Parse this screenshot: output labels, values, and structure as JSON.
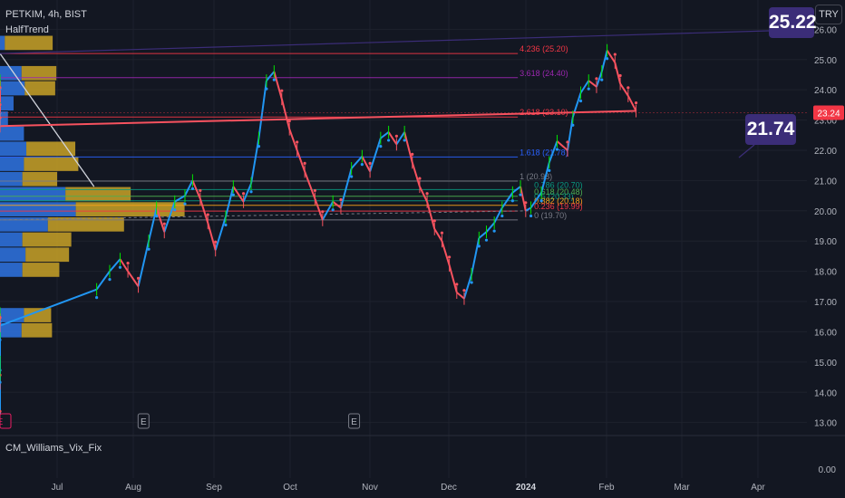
{
  "header": {
    "ticker": "PETKIM, 4h, BIST",
    "indicator": "HalfTrend",
    "currency_button": "TRY"
  },
  "sub_indicator": {
    "label": "CM_Williams_Vix_Fix",
    "axis_label": "0.00"
  },
  "callouts": {
    "top": "25.22",
    "middle": "21.74"
  },
  "current_price": {
    "label": "23.24",
    "color": "#f23645"
  },
  "colors": {
    "up": "#2196f3",
    "down": "#f7525f",
    "green": "#00e600",
    "volume_blue": "#2d6fd8",
    "volume_gold": "#c9a227"
  },
  "earnings_markers": [
    {
      "label": "E",
      "date": "Sep"
    },
    {
      "label": "E",
      "date": "Nov"
    },
    {
      "label": "E",
      "date": "Mar"
    }
  ],
  "chart_data": {
    "type": "line",
    "title": "PETKIM, 4h, BIST",
    "x_labels": [
      "Jul",
      "Aug",
      "Sep",
      "Oct",
      "Nov",
      "Dec",
      "2024",
      "Feb",
      "Mar",
      "Apr"
    ],
    "y_ticks": [
      "13.00",
      "14.00",
      "15.00",
      "16.00",
      "17.00",
      "18.00",
      "19.00",
      "20.00",
      "21.00",
      "22.00",
      "23.00",
      "24.00",
      "25.00",
      "26.00"
    ],
    "ylim": [
      12.9,
      26.1
    ],
    "series": [
      {
        "points": [
          [
            "Jun 20",
            15.0
          ],
          [
            "Jun 25",
            14.3
          ],
          [
            "Jul 1",
            13.1
          ],
          [
            "Jul 4",
            14.6
          ],
          [
            "Jul 8",
            16.0
          ],
          [
            "Jul 12",
            16.6
          ],
          [
            "Jul 18",
            16.2
          ],
          [
            "Jul 24",
            16.6
          ],
          [
            "Jul 28",
            16.2
          ],
          [
            "Aug 2",
            17.4
          ],
          [
            "Aug 7",
            18.0
          ],
          [
            "Aug 11",
            18.4
          ],
          [
            "Aug 14",
            18.0
          ],
          [
            "Aug 18",
            17.5
          ],
          [
            "Aug 22",
            19.0
          ],
          [
            "Aug 25",
            20.1
          ],
          [
            "Aug 28",
            19.3
          ],
          [
            "Sep 1",
            20.3
          ],
          [
            "Sep 5",
            20.5
          ],
          [
            "Sep 8",
            21.0
          ],
          [
            "Sep 11",
            20.4
          ],
          [
            "Sep 14",
            19.6
          ],
          [
            "Sep 17",
            18.7
          ],
          [
            "Sep 21",
            19.8
          ],
          [
            "Sep 24",
            20.8
          ],
          [
            "Sep 28",
            20.3
          ],
          [
            "Oct 1",
            20.9
          ],
          [
            "Oct 4",
            22.4
          ],
          [
            "Oct 7",
            24.3
          ],
          [
            "Oct 10",
            24.6
          ],
          [
            "Oct 13",
            23.7
          ],
          [
            "Oct 16",
            22.7
          ],
          [
            "Oct 19",
            22.0
          ],
          [
            "Oct 22",
            21.3
          ],
          [
            "Oct 26",
            20.4
          ],
          [
            "Oct 29",
            19.7
          ],
          [
            "Nov 2",
            20.3
          ],
          [
            "Nov 5",
            20.1
          ],
          [
            "Nov 9",
            21.4
          ],
          [
            "Nov 13",
            21.8
          ],
          [
            "Nov 16",
            21.3
          ],
          [
            "Nov 20",
            22.4
          ],
          [
            "Nov 23",
            22.6
          ],
          [
            "Nov 26",
            22.2
          ],
          [
            "Nov 29",
            22.6
          ],
          [
            "Dec 2",
            21.6
          ],
          [
            "Dec 5",
            20.8
          ],
          [
            "Dec 8",
            20.3
          ],
          [
            "Dec 11",
            19.4
          ],
          [
            "Dec 14",
            19.0
          ],
          [
            "Dec 17",
            18.2
          ],
          [
            "Dec 20",
            17.3
          ],
          [
            "Dec 23",
            17.1
          ],
          [
            "Dec 26",
            17.9
          ],
          [
            "Dec 29",
            19.1
          ],
          [
            "Jan 1",
            19.3
          ],
          [
            "Jan 4",
            19.6
          ],
          [
            "Jan 7",
            20.1
          ],
          [
            "Jan 11",
            20.6
          ],
          [
            "Jan 14",
            20.8
          ],
          [
            "Jan 16",
            20.0
          ],
          [
            "Jan 18",
            20.1
          ],
          [
            "Jan 22",
            20.6
          ],
          [
            "Jan 25",
            21.6
          ],
          [
            "Jan 28",
            22.3
          ],
          [
            "Feb 1",
            22.0
          ],
          [
            "Feb 3",
            23.1
          ],
          [
            "Feb 6",
            23.9
          ],
          [
            "Feb 9",
            24.3
          ],
          [
            "Feb 12",
            24.1
          ],
          [
            "Feb 14",
            24.6
          ],
          [
            "Feb 16",
            25.3
          ],
          [
            "Feb 19",
            24.9
          ],
          [
            "Feb 21",
            24.2
          ],
          [
            "Feb 24",
            23.8
          ],
          [
            "Feb 27",
            23.3
          ],
          [
            "Mar 1",
            22.8
          ],
          [
            "Mar 4",
            23.5
          ],
          [
            "Mar 7",
            24.3
          ],
          [
            "Mar 10",
            23.8
          ],
          [
            "Mar 13",
            23.24
          ]
        ]
      }
    ],
    "trendlines": [
      {
        "from": [
          "Aug 1",
          20.8
        ],
        "to": [
          "Mar 31",
          25.2
        ]
      },
      {
        "from": [
          "Jun 15",
          20.0
        ],
        "to": [
          "Mar 17",
          20.0
        ]
      },
      {
        "from": [
          "Jan 17",
          20.0
        ],
        "to": [
          "Mar 31",
          19.7
        ]
      }
    ],
    "volume_profile": [
      {
        "price": 23.55,
        "blue": 0.17,
        "gold": 0.0
      },
      {
        "price": 23.05,
        "blue": 0.1,
        "gold": 0.0
      },
      {
        "price": 22.55,
        "blue": 0.3,
        "gold": 0.0
      },
      {
        "price": 22.05,
        "blue": 0.33,
        "gold": 0.45
      },
      {
        "price": 21.55,
        "blue": 0.3,
        "gold": 0.5
      },
      {
        "price": 21.05,
        "blue": 0.28,
        "gold": 0.32
      },
      {
        "price": 20.55,
        "blue": 0.82,
        "gold": 0.6
      },
      {
        "price": 20.05,
        "blue": 0.95,
        "gold": 1.0
      },
      {
        "price": 19.55,
        "blue": 0.6,
        "gold": 0.7
      },
      {
        "price": 19.05,
        "blue": 0.28,
        "gold": 0.45
      },
      {
        "price": 18.55,
        "blue": 0.32,
        "gold": 0.4
      },
      {
        "price": 18.05,
        "blue": 0.28,
        "gold": 0.34
      },
      {
        "price": 16.55,
        "blue": 0.3,
        "gold": 0.25
      },
      {
        "price": 16.05,
        "blue": 0.27,
        "gold": 0.28
      },
      {
        "price": 25.55,
        "blue": 0.06,
        "gold": 0.44
      },
      {
        "price": 24.55,
        "blue": 0.27,
        "gold": 0.32
      },
      {
        "price": 24.05,
        "blue": 0.31,
        "gold": 0.28
      }
    ],
    "fibonacci": {
      "range": [
        "Jan 13",
        "Mar 31"
      ],
      "levels": [
        {
          "ratio": "4.236",
          "price": 25.2,
          "label": "4.236 (25.20)",
          "color": "#f23645"
        },
        {
          "ratio": "3.618",
          "price": 24.4,
          "label": "3.618 (24.40)",
          "color": "#9c27b0"
        },
        {
          "ratio": "2.618",
          "price": 23.1,
          "label": "2.618 (23.10)",
          "color": "#f23645"
        },
        {
          "ratio": "1.618",
          "price": 21.78,
          "label": "1.618 (21.78)",
          "color": "#2962ff"
        },
        {
          "ratio": "1",
          "price": 20.98,
          "label": "1 (20.98)",
          "color": "#787b86"
        },
        {
          "ratio": "0.786",
          "price": 20.7,
          "label": "0.786 (20.70)",
          "color": "#089981"
        },
        {
          "ratio": "0.618",
          "price": 20.48,
          "label": "0.618 (20.48)",
          "color": "#4caf50"
        },
        {
          "ratio": "0.5",
          "price": 20.33,
          "label": "0.5 (20.33)",
          "color": "#089981"
        },
        {
          "ratio": "0.382",
          "price": 20.18,
          "label": "0.382 (20.18)",
          "color": "#f7a21b"
        },
        {
          "ratio": "0.236",
          "price": 19.99,
          "label": "0.236 (19.99)",
          "color": "#f23645"
        },
        {
          "ratio": "0",
          "price": 19.7,
          "label": "0 (19.70)",
          "color": "#787b86"
        }
      ]
    },
    "grid": true
  }
}
